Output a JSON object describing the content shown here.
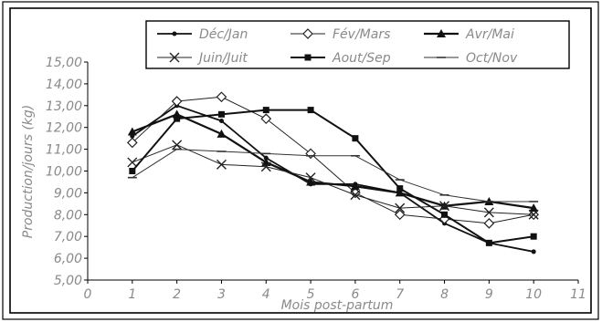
{
  "chart_data": {
    "type": "line",
    "title": "",
    "xlabel": "Mois post-partum",
    "ylabel": "Production/jours (kg)",
    "xlim": [
      0,
      11
    ],
    "ylim": [
      5,
      15
    ],
    "x_ticks": [
      "0",
      "1",
      "2",
      "3",
      "4",
      "5",
      "6",
      "7",
      "8",
      "9",
      "10",
      "11"
    ],
    "y_ticks": [
      "5,00",
      "6,00",
      "7,00",
      "8,00",
      "9,00",
      "10,00",
      "11,00",
      "12,00",
      "13,00",
      "14,00",
      "15,00"
    ],
    "grid": false,
    "legend_position": "top",
    "x": [
      1,
      2,
      3,
      4,
      5,
      6,
      7,
      8,
      9,
      10
    ],
    "series": [
      {
        "name": "Déc/Jan",
        "values": [
          11.6,
          13.0,
          12.3,
          10.6,
          9.4,
          9.4,
          9.0,
          7.6,
          6.7,
          6.3
        ],
        "color": "#111111",
        "marker": "dot",
        "width": 1.8
      },
      {
        "name": "Fév/Mars",
        "values": [
          11.3,
          13.2,
          13.4,
          12.4,
          10.8,
          9.0,
          8.0,
          7.8,
          7.6,
          8.0
        ],
        "color": "#222222",
        "marker": "diamond",
        "width": 1.0
      },
      {
        "name": "Avr/Mai",
        "values": [
          11.8,
          12.6,
          11.7,
          10.4,
          9.5,
          9.3,
          9.0,
          8.4,
          8.6,
          8.3
        ],
        "color": "#111111",
        "marker": "triangle",
        "width": 2.2
      },
      {
        "name": "Juin/Juit",
        "values": [
          10.4,
          11.2,
          10.3,
          10.2,
          9.7,
          8.9,
          8.3,
          8.4,
          8.1,
          8.0
        ],
        "color": "#222222",
        "marker": "cross",
        "width": 1.0
      },
      {
        "name": "Aout/Sep",
        "values": [
          10.0,
          12.4,
          12.6,
          12.8,
          12.8,
          11.5,
          9.2,
          8.0,
          6.7,
          7.0
        ],
        "color": "#111111",
        "marker": "square",
        "width": 2.0
      },
      {
        "name": "Oct/Nov",
        "values": [
          9.7,
          11.0,
          10.9,
          10.8,
          10.7,
          10.7,
          9.6,
          8.9,
          8.6,
          8.6
        ],
        "color": "#333333",
        "marker": "dash",
        "width": 1.0
      }
    ]
  }
}
